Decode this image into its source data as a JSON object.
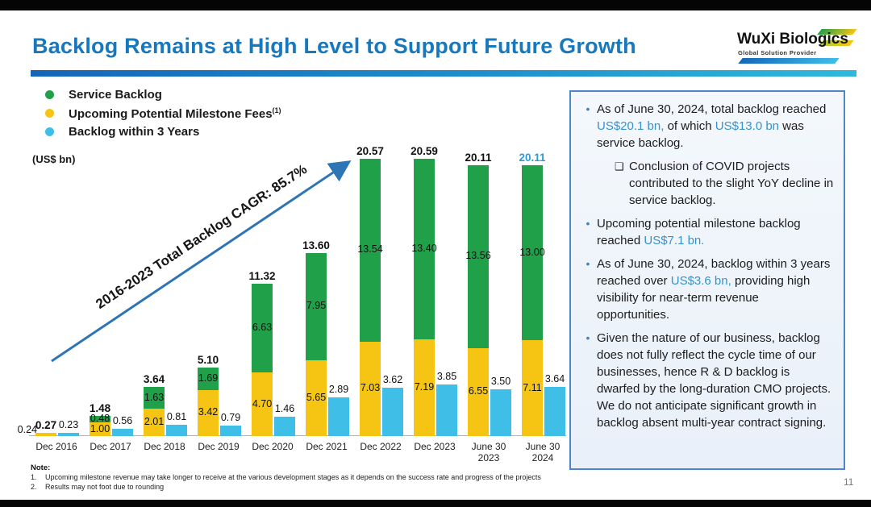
{
  "slide": {
    "title": "Backlog Remains at High Level to Support Future Growth",
    "page_number": "11"
  },
  "logo": {
    "name": "WuXi Biologics",
    "tagline": "Global Solution Provider"
  },
  "legend": {
    "items": [
      {
        "label": "Service Backlog",
        "sup": "",
        "color": "#21a04a"
      },
      {
        "label": "Upcoming Potential Milestone Fees",
        "sup": "(1)",
        "color": "#f6c513"
      },
      {
        "label": "Backlog within 3 Years",
        "sup": "",
        "color": "#3fbee8"
      }
    ],
    "units": "(US$ bn)"
  },
  "chart_data": {
    "type": "bar",
    "stacked": true,
    "unit": "US$ bn",
    "grid": false,
    "legend_position": "top-left",
    "ylim": [
      0,
      22
    ],
    "categories": [
      "Dec 2016",
      "Dec 2017",
      "Dec 2018",
      "Dec 2019",
      "Dec 2020",
      "Dec 2021",
      "Dec 2022",
      "Dec 2023",
      "June 30\n2023",
      "June 30\n2024"
    ],
    "series": [
      {
        "name": "Service Backlog",
        "color": "#21a04a",
        "values": [
          null,
          0.48,
          1.63,
          1.69,
          6.63,
          7.95,
          13.54,
          13.4,
          13.56,
          13.0
        ]
      },
      {
        "name": "Upcoming Potential Milestone Fees",
        "color": "#f6c513",
        "values": [
          0.24,
          1.0,
          2.01,
          3.42,
          4.7,
          5.65,
          7.03,
          7.19,
          6.55,
          7.11
        ]
      },
      {
        "name": "Backlog within 3 Years",
        "color": "#3fbee8",
        "values": [
          0.23,
          0.56,
          0.81,
          0.79,
          1.46,
          2.89,
          3.62,
          3.85,
          3.5,
          3.64
        ]
      }
    ],
    "totals": [
      0.27,
      1.48,
      3.64,
      5.1,
      11.32,
      13.6,
      20.57,
      20.59,
      20.11,
      20.11
    ],
    "highlighted_total_index": 9,
    "highlight_color": "#2e9bd6",
    "annotation": "2016-2023 Total Backlog CAGR: 85.7%",
    "arrow_color": "#2e75b6"
  },
  "panel": {
    "bullets": [
      {
        "segments": [
          {
            "t": "As of June 30, 2024, total backlog reached ",
            "h": false
          },
          {
            "t": "US$20.1 bn,",
            "h": true
          },
          {
            "t": " of which ",
            "h": false
          },
          {
            "t": "US$13.0 bn",
            "h": true
          },
          {
            "t": " was service backlog.",
            "h": false
          }
        ],
        "sub": [
          "Conclusion of COVID projects contributed to the slight YoY decline in service backlog."
        ]
      },
      {
        "segments": [
          {
            "t": "Upcoming potential milestone backlog reached ",
            "h": false
          },
          {
            "t": "US$7.1 bn.",
            "h": true
          }
        ],
        "sub": []
      },
      {
        "segments": [
          {
            "t": "As of June 30, 2024, backlog within 3 years reached over ",
            "h": false
          },
          {
            "t": "US$3.6 bn,",
            "h": true
          },
          {
            "t": " providing high visibility for near-term revenue opportunities.",
            "h": false
          }
        ],
        "sub": []
      },
      {
        "segments": [
          {
            "t": "Given the nature of our business, backlog does not fully reflect the cycle time of our businesses, hence R & D backlog is dwarfed by the long-duration CMO projects. We do not anticipate significant growth in backlog absent multi-year contract signing.",
            "h": false
          }
        ],
        "sub": []
      }
    ]
  },
  "notes": {
    "title": "Note:",
    "items": [
      "Upcoming milestone revenue may take longer to receive at the various development stages as it depends on the success rate and progress of the projects",
      "Results may not foot due to rounding"
    ]
  }
}
